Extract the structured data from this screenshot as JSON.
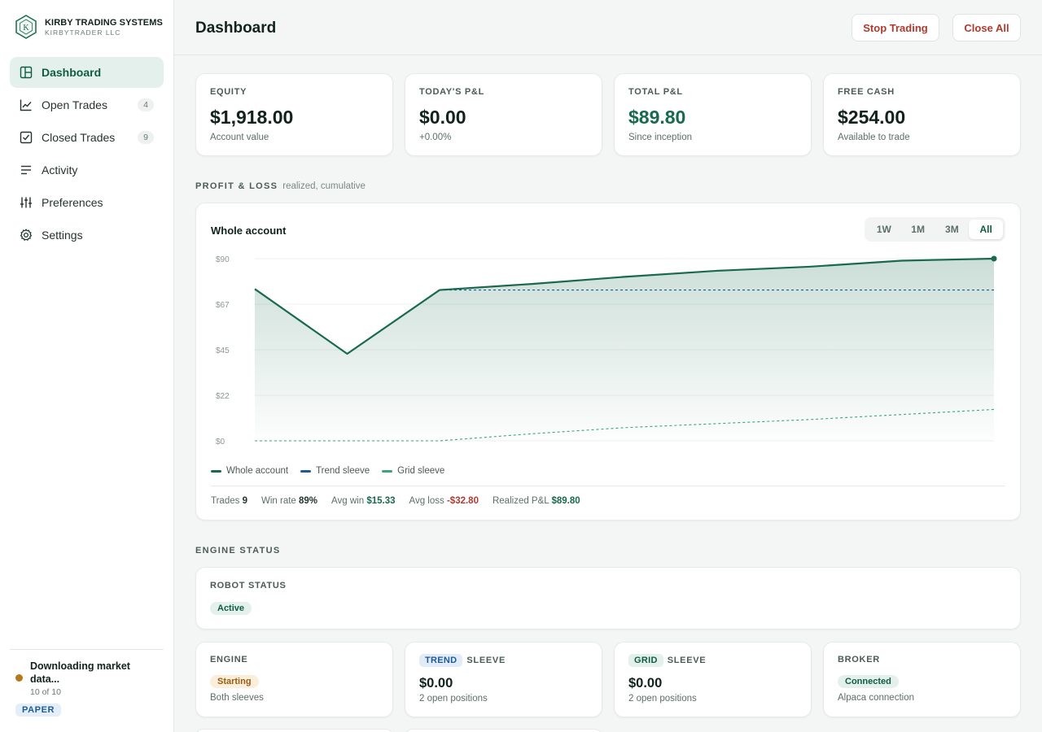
{
  "brand": {
    "name": "KIRBY TRADING SYSTEMS",
    "subtitle": "KIRBYTRADER LLC",
    "logo_letter": "K"
  },
  "nav": {
    "items": [
      {
        "label": "Dashboard",
        "icon": "dashboard-icon",
        "count": ""
      },
      {
        "label": "Open Trades",
        "icon": "chart-line-icon",
        "count": "4"
      },
      {
        "label": "Closed Trades",
        "icon": "checkbox-icon",
        "count": "9"
      },
      {
        "label": "Activity",
        "icon": "list-icon",
        "count": ""
      },
      {
        "label": "Preferences",
        "icon": "sliders-icon",
        "count": ""
      },
      {
        "label": "Settings",
        "icon": "gear-icon",
        "count": ""
      }
    ],
    "active": "Dashboard"
  },
  "footer": {
    "status_title": "Downloading market data...",
    "status_progress": "10 of 10",
    "mode_badge": "PAPER"
  },
  "header": {
    "title": "Dashboard",
    "stop_label": "Stop Trading",
    "close_label": "Close All"
  },
  "kpis": [
    {
      "label": "EQUITY",
      "value": "$1,918.00",
      "sub": "Account value"
    },
    {
      "label": "TODAY'S P&L",
      "value": "$0.00",
      "sub": "+0.00%"
    },
    {
      "label": "TOTAL P&L",
      "value": "$89.80",
      "sub": "Since inception"
    },
    {
      "label": "FREE CASH",
      "value": "$254.00",
      "sub": "Available to trade"
    }
  ],
  "pnl_section": {
    "label": "PROFIT & LOSS",
    "note": "realized, cumulative"
  },
  "chart": {
    "title": "Whole account",
    "ranges": [
      "1W",
      "1M",
      "3M",
      "All"
    ],
    "active_range": "All",
    "stats": {
      "trades_label": "Trades",
      "trades_value": "9",
      "winrate_label": "Win rate",
      "winrate_value": "89%",
      "avgwin_label": "Avg win",
      "avgwin_value": "$15.33",
      "avgloss_label": "Avg loss",
      "avgloss_value": "-$32.80",
      "realized_label": "Realized P&L",
      "realized_value": "$89.80"
    }
  },
  "chart_data": {
    "type": "area",
    "ylim": [
      0,
      90
    ],
    "y_ticks": [
      "$0",
      "$22",
      "$45",
      "$67",
      "$90"
    ],
    "y_tick_values": [
      0,
      22.5,
      45,
      67.5,
      90
    ],
    "colors": {
      "whole": "#17694f",
      "trend": "#1d5c93",
      "grid": "#3aa57a"
    },
    "series": [
      {
        "name": "Whole account",
        "values": [
          75,
          43,
          74.5,
          77.5,
          81,
          84,
          86,
          89,
          90
        ]
      },
      {
        "name": "Trend sleeve",
        "values": [
          null,
          null,
          74.5,
          74.5,
          74.5,
          74.5,
          74.5,
          74.5,
          74.5
        ]
      },
      {
        "name": "Grid sleeve",
        "values": [
          0,
          0,
          0,
          3.5,
          6.5,
          8.5,
          10.5,
          13,
          15.5
        ]
      }
    ]
  },
  "engine_section": {
    "label": "ENGINE STATUS"
  },
  "robot": {
    "label": "ROBOT STATUS",
    "status": "Active"
  },
  "engine_cards": {
    "engine": {
      "label": "ENGINE",
      "status": "Starting",
      "sub": "Both sleeves"
    },
    "trend": {
      "tag": "TREND",
      "word": "SLEEVE",
      "value": "$0.00",
      "sub": "2 open positions"
    },
    "grid": {
      "tag": "GRID",
      "word": "SLEEVE",
      "value": "$0.00",
      "sub": "2 open positions"
    },
    "broker": {
      "label": "BROKER",
      "status": "Connected",
      "sub": "Alpaca connection"
    }
  }
}
